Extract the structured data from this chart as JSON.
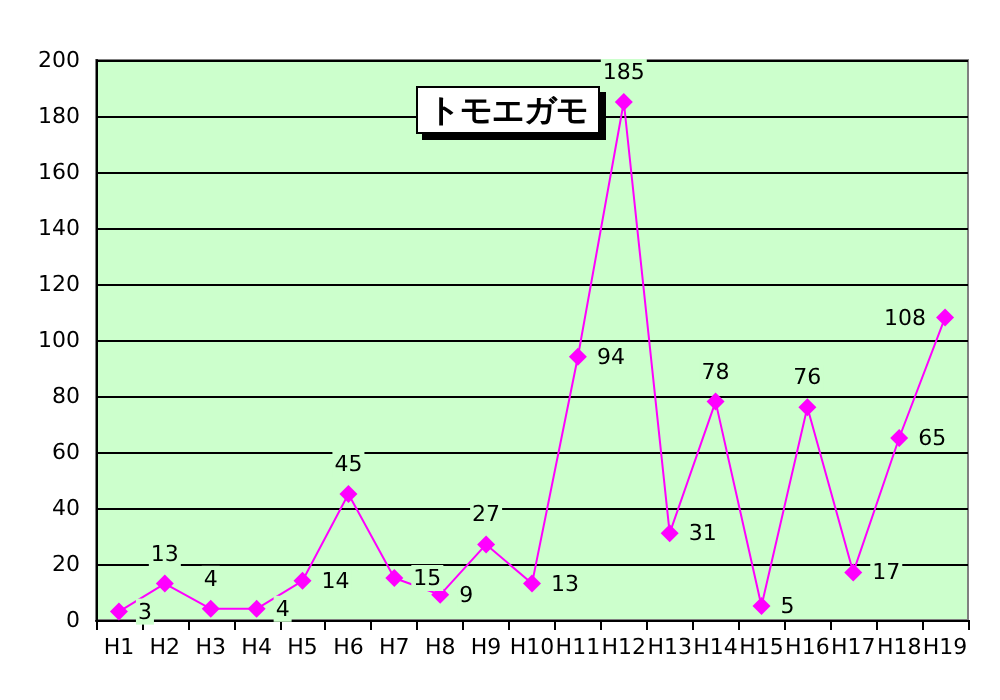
{
  "chart_data": {
    "type": "line",
    "title": "トモエガモ",
    "categories": [
      "H1",
      "H2",
      "H3",
      "H4",
      "H5",
      "H6",
      "H7",
      "H8",
      "H9",
      "H10",
      "H11",
      "H12",
      "H13",
      "H14",
      "H15",
      "H16",
      "H17",
      "H18",
      "H19"
    ],
    "series": [
      {
        "color": "#ff00ff",
        "values": [
          3,
          13,
          4,
          4,
          14,
          45,
          15,
          9,
          27,
          13,
          94,
          185,
          31,
          78,
          5,
          76,
          17,
          65,
          108
        ]
      }
    ],
    "ylim": [
      0,
      200
    ],
    "yticks": [
      0,
      20,
      40,
      60,
      80,
      100,
      120,
      140,
      160,
      180,
      200
    ],
    "grid": "y",
    "marker": "diamond",
    "line_style": "solid",
    "data_labels": true
  }
}
